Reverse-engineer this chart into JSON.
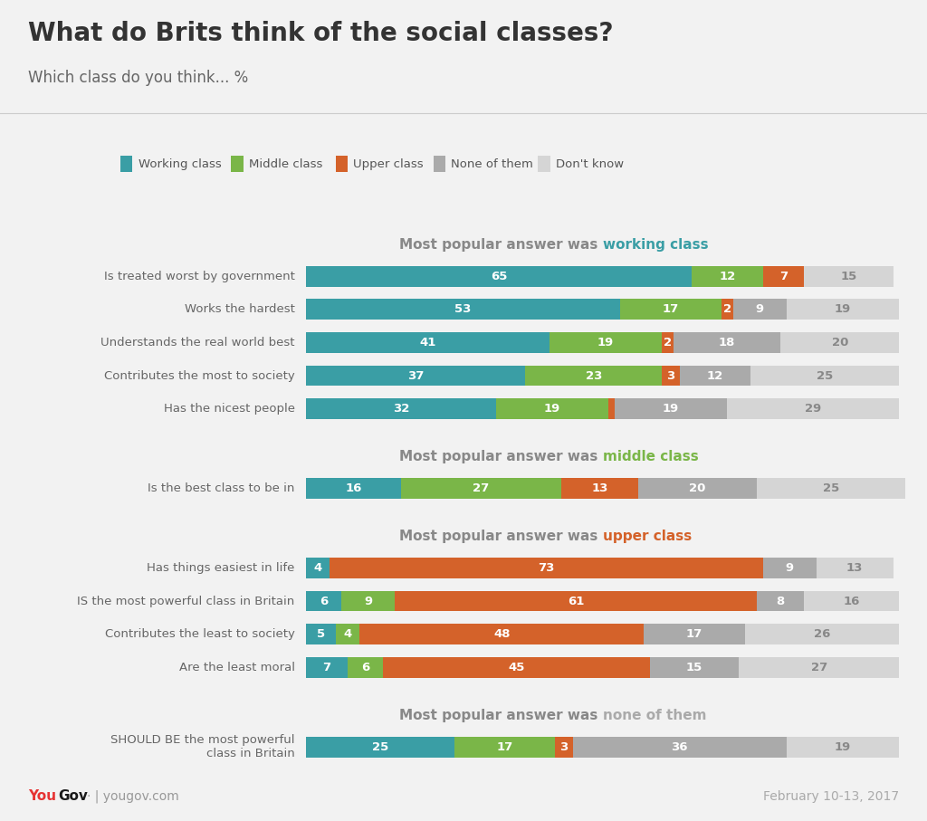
{
  "title": "What do Brits think of the social classes?",
  "subtitle": "Which class do you think... %",
  "footer_right": "February 10-13, 2017",
  "colors": {
    "working": "#3a9ea5",
    "middle": "#7ab648",
    "upper": "#d4622a",
    "none": "#aaaaaa",
    "dontknow": "#d5d5d5",
    "bg": "#f2f2f2"
  },
  "legend_labels": [
    "Working class",
    "Middle class",
    "Upper class",
    "None of them",
    "Don't know"
  ],
  "sections": [
    {
      "header": "Most popular answer was ",
      "header_highlight": "working class",
      "header_color": "#3a9ea5",
      "rows": [
        {
          "label": "Is treated worst by government",
          "values": [
            65,
            12,
            7,
            0,
            15
          ]
        },
        {
          "label": "Works the hardest",
          "values": [
            53,
            17,
            2,
            9,
            19
          ]
        },
        {
          "label": "Understands the real world best",
          "values": [
            41,
            19,
            2,
            18,
            20
          ]
        },
        {
          "label": "Contributes the most to society",
          "values": [
            37,
            23,
            3,
            12,
            25
          ]
        },
        {
          "label": "Has the nicest people",
          "values": [
            32,
            19,
            1,
            19,
            29
          ]
        }
      ]
    },
    {
      "header": "Most popular answer was ",
      "header_highlight": "middle class",
      "header_color": "#7ab648",
      "rows": [
        {
          "label": "Is the best class to be in",
          "values": [
            16,
            27,
            13,
            20,
            25
          ]
        }
      ]
    },
    {
      "header": "Most popular answer was ",
      "header_highlight": "upper class",
      "header_color": "#d4622a",
      "rows": [
        {
          "label": "Has things easiest in life",
          "values": [
            4,
            0,
            73,
            9,
            13
          ]
        },
        {
          "label": "IS the most powerful class in Britain",
          "values": [
            6,
            9,
            61,
            8,
            16
          ]
        },
        {
          "label": "Contributes the least to society",
          "values": [
            5,
            4,
            48,
            17,
            26
          ]
        },
        {
          "label": "Are the least moral",
          "values": [
            7,
            6,
            45,
            15,
            27
          ]
        }
      ]
    },
    {
      "header": "Most popular answer was ",
      "header_highlight": "none of them",
      "header_color": "#aaaaaa",
      "rows": [
        {
          "label": "SHOULD BE the most powerful\nclass in Britain",
          "values": [
            25,
            17,
            3,
            36,
            19
          ]
        }
      ]
    }
  ],
  "fontsize_label": 9.5,
  "fontsize_value": 9.5,
  "fontsize_header": 11,
  "fontsize_title": 20,
  "fontsize_subtitle": 12
}
